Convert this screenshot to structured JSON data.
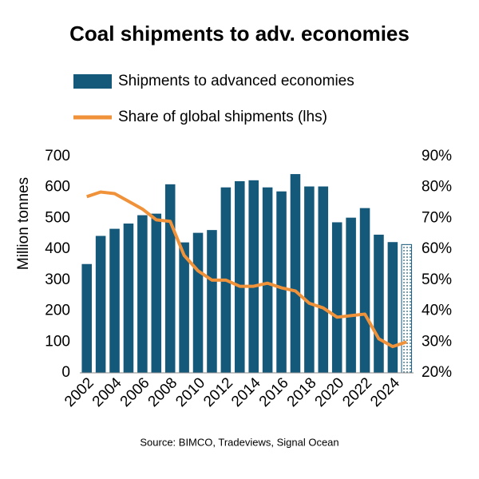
{
  "chart_data": {
    "type": "bar_line",
    "title": "Coal shipments to adv. economies",
    "y_label": "Million tonnes",
    "source": "Source: BIMCO, Tradeviews, Signal Ocean",
    "categories": [
      "2002",
      null,
      "2004",
      null,
      "2006",
      null,
      "2008",
      null,
      "2010",
      null,
      "2012",
      null,
      "2014",
      null,
      "2016",
      null,
      "2018",
      null,
      "2020",
      null,
      "2022",
      null,
      "2024",
      null
    ],
    "series": [
      {
        "name": "Shipments to advanced economies",
        "type": "bar",
        "color": "#14587a",
        "values": [
          352,
          443,
          466,
          483,
          510,
          515,
          610,
          422,
          453,
          462,
          600,
          620,
          623,
          600,
          587,
          643,
          603,
          603,
          487,
          502,
          533,
          447,
          423,
          415
        ]
      },
      {
        "name": "Share of global shipments (lhs)",
        "type": "line",
        "axis": "y2",
        "color": "#f0923a",
        "values": [
          77,
          78.5,
          78,
          75.5,
          73,
          69.5,
          69,
          58,
          53,
          50,
          50,
          48,
          48,
          49,
          47.5,
          46.5,
          42.5,
          41,
          38,
          38.5,
          39,
          31,
          28.5,
          30
        ]
      }
    ],
    "ylim": [
      0,
      700
    ],
    "yticks": [
      0,
      100,
      200,
      300,
      400,
      500,
      600,
      700
    ],
    "y2lim": [
      20,
      90
    ],
    "y2ticks": [
      {
        "value": 20,
        "label": "20%"
      },
      {
        "value": 30,
        "label": "30%"
      },
      {
        "value": 40,
        "label": "40%"
      },
      {
        "value": 50,
        "label": "50%"
      },
      {
        "value": 60,
        "label": "60%"
      },
      {
        "value": 70,
        "label": "70%"
      },
      {
        "value": 80,
        "label": "80%"
      },
      {
        "value": 90,
        "label": "90%"
      }
    ],
    "grid": false
  }
}
